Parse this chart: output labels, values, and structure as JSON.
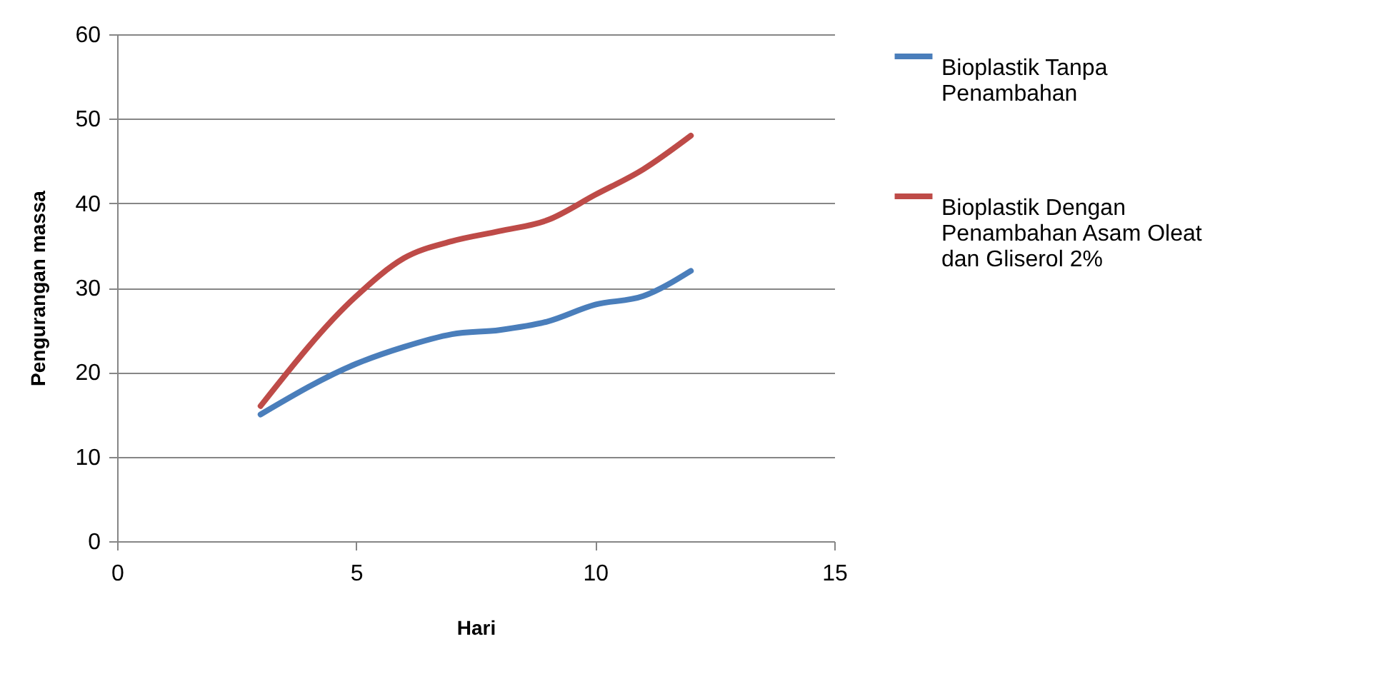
{
  "chart_data": {
    "type": "line",
    "xlabel": "Hari",
    "ylabel": "Pengurangan massa",
    "xlim": [
      0,
      15
    ],
    "xticks": [
      0,
      5,
      10,
      15
    ],
    "ylim": [
      0,
      60
    ],
    "yticks": [
      0,
      10,
      20,
      30,
      40,
      50,
      60
    ],
    "grid": "y",
    "legend": "right",
    "line_style": "solid",
    "marker": "none",
    "x": [
      3,
      5,
      6,
      7,
      8,
      9,
      10,
      11,
      12
    ],
    "series": [
      {
        "name": "Bioplastik Tanpa Penambahan",
        "color": "#4a7ebb",
        "values": [
          15,
          21,
          23,
          24.5,
          25,
          26,
          28,
          29,
          32
        ]
      },
      {
        "name": "Bioplastik Dengan Penambahan Asam Oleat dan Gliserol 2%",
        "color": "#be4b48",
        "values": [
          16,
          29,
          33.5,
          35.5,
          36.7,
          38,
          41,
          44,
          48
        ]
      }
    ]
  }
}
